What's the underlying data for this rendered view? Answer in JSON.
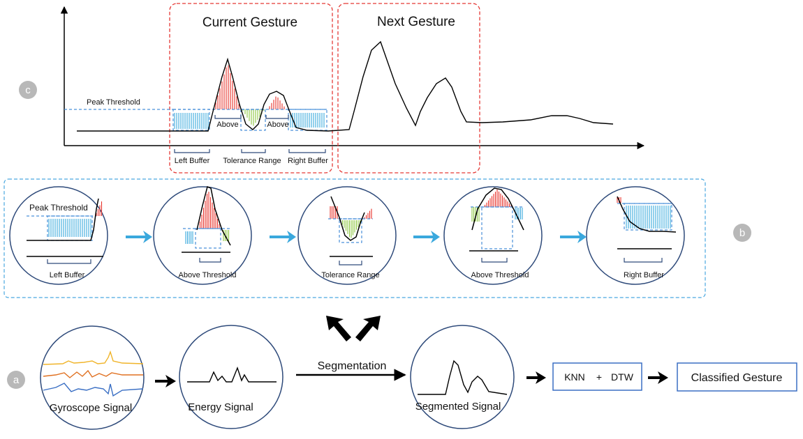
{
  "panel_c": {
    "badge": "c",
    "current_gesture": "Current Gesture",
    "next_gesture": "Next Gesture",
    "peak_threshold": "Peak Threshold",
    "above_1": "Above",
    "above_2": "Above",
    "left_buffer": "Left Buffer",
    "tolerance_range": "Tolerance Range",
    "right_buffer": "Right Buffer"
  },
  "panel_b": {
    "badge": "b",
    "peak_threshold": "Peak Threshold",
    "steps": [
      "Left Buffer",
      "Above Threshold",
      "Tolerance Range",
      "Above Threshold",
      "Right Buffer"
    ]
  },
  "panel_a": {
    "badge": "a",
    "gyroscope_signal": "Gyroscope Signal",
    "energy_signal": "Energy Signal",
    "segmentation": "Segmentation",
    "segmented_signal": "Segmented Signal",
    "knn": "KNN",
    "plus": "+",
    "dtw": "DTW",
    "classified_gesture": "Classified Gesture"
  },
  "colors": {
    "red_bars": "#e8322b",
    "blue_bars": "#3aa8dd",
    "green_bars": "#8cc63f",
    "red_dashed": "#e53935",
    "blue_dashed": "#4a90d9",
    "circle_stroke": "#2e4a7a",
    "badge_fill": "#b8b8b8",
    "gyro_yellow": "#f0b429",
    "gyro_orange": "#e07020",
    "gyro_blue": "#3a6fc4"
  }
}
